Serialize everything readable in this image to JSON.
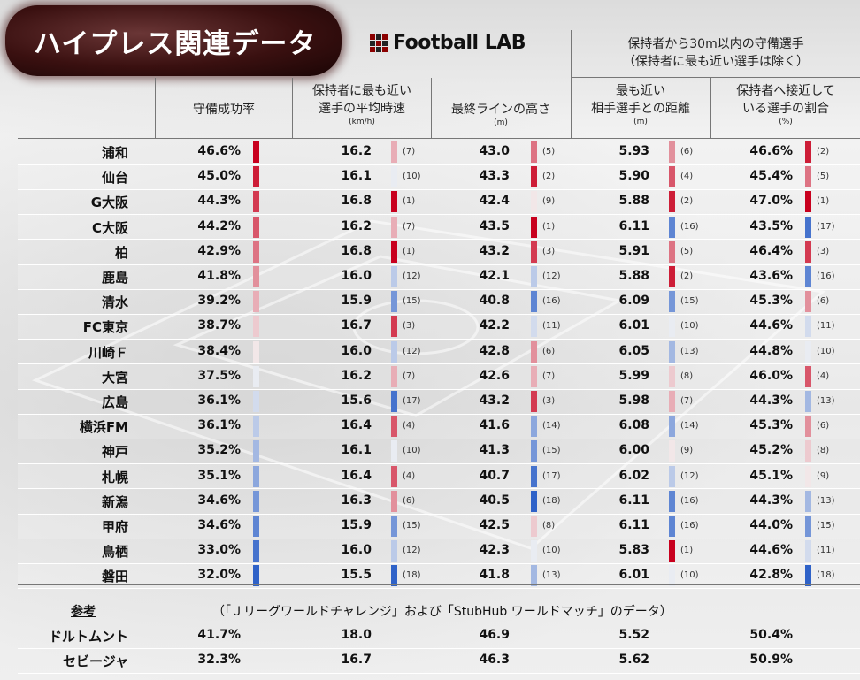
{
  "title": "ハイプレス関連データ",
  "logo": "Football LAB",
  "group_header": {
    "line1": "保持者から30m以内の守備選手",
    "line2": "（保持者に最も近い選手は除く）"
  },
  "columns": [
    {
      "label_lines": [
        "守備成功率"
      ],
      "unit": ""
    },
    {
      "label_lines": [
        "保持者に最も近い",
        "選手の平均時速"
      ],
      "unit": "(km/h)"
    },
    {
      "label_lines": [
        "最終ラインの高さ"
      ],
      "unit": "(m)"
    },
    {
      "label_lines": [
        "最も近い",
        "相手選手との距離"
      ],
      "unit": "(m)"
    },
    {
      "label_lines": [
        "保持者へ接近して",
        "いる選手の割合"
      ],
      "unit": "(%)"
    }
  ],
  "rows": [
    {
      "team": "浦和",
      "values": [
        "46.6%",
        "16.2",
        "43.0",
        "5.93",
        "46.6%"
      ],
      "ranks": [
        null,
        "(7)",
        "(5)",
        "(6)",
        "(2)"
      ]
    },
    {
      "team": "仙台",
      "values": [
        "45.0%",
        "16.1",
        "43.3",
        "5.90",
        "45.4%"
      ],
      "ranks": [
        null,
        "(10)",
        "(2)",
        "(4)",
        "(5)"
      ]
    },
    {
      "team": "G大阪",
      "values": [
        "44.3%",
        "16.8",
        "42.4",
        "5.88",
        "47.0%"
      ],
      "ranks": [
        null,
        "(1)",
        "(9)",
        "(2)",
        "(1)"
      ]
    },
    {
      "team": "C大阪",
      "values": [
        "44.2%",
        "16.2",
        "43.5",
        "6.11",
        "43.5%"
      ],
      "ranks": [
        null,
        "(7)",
        "(1)",
        "(16)",
        "(17)"
      ]
    },
    {
      "team": "柏",
      "values": [
        "42.9%",
        "16.8",
        "43.2",
        "5.91",
        "46.4%"
      ],
      "ranks": [
        null,
        "(1)",
        "(3)",
        "(5)",
        "(3)"
      ]
    },
    {
      "team": "鹿島",
      "values": [
        "41.8%",
        "16.0",
        "42.1",
        "5.88",
        "43.6%"
      ],
      "ranks": [
        null,
        "(12)",
        "(12)",
        "(2)",
        "(16)"
      ]
    },
    {
      "team": "清水",
      "values": [
        "39.2%",
        "15.9",
        "40.8",
        "6.09",
        "45.3%"
      ],
      "ranks": [
        null,
        "(15)",
        "(16)",
        "(15)",
        "(6)"
      ]
    },
    {
      "team": "FC東京",
      "values": [
        "38.7%",
        "16.7",
        "42.2",
        "6.01",
        "44.6%"
      ],
      "ranks": [
        null,
        "(3)",
        "(11)",
        "(10)",
        "(11)"
      ]
    },
    {
      "team": "川崎Ｆ",
      "values": [
        "38.4%",
        "16.0",
        "42.8",
        "6.05",
        "44.8%"
      ],
      "ranks": [
        null,
        "(12)",
        "(6)",
        "(13)",
        "(10)"
      ]
    },
    {
      "team": "大宮",
      "values": [
        "37.5%",
        "16.2",
        "42.6",
        "5.99",
        "46.0%"
      ],
      "ranks": [
        null,
        "(7)",
        "(7)",
        "(8)",
        "(4)"
      ]
    },
    {
      "team": "広島",
      "values": [
        "36.1%",
        "15.6",
        "43.2",
        "5.98",
        "44.3%"
      ],
      "ranks": [
        null,
        "(17)",
        "(3)",
        "(7)",
        "(13)"
      ]
    },
    {
      "team": "横浜FM",
      "values": [
        "36.1%",
        "16.4",
        "41.6",
        "6.08",
        "45.3%"
      ],
      "ranks": [
        null,
        "(4)",
        "(14)",
        "(14)",
        "(6)"
      ]
    },
    {
      "team": "神戸",
      "values": [
        "35.2%",
        "16.1",
        "41.3",
        "6.00",
        "45.2%"
      ],
      "ranks": [
        null,
        "(10)",
        "(15)",
        "(9)",
        "(8)"
      ]
    },
    {
      "team": "札幌",
      "values": [
        "35.1%",
        "16.4",
        "40.7",
        "6.02",
        "45.1%"
      ],
      "ranks": [
        null,
        "(4)",
        "(17)",
        "(12)",
        "(9)"
      ]
    },
    {
      "team": "新潟",
      "values": [
        "34.6%",
        "16.3",
        "40.5",
        "6.11",
        "44.3%"
      ],
      "ranks": [
        null,
        "(6)",
        "(18)",
        "(16)",
        "(13)"
      ]
    },
    {
      "team": "甲府",
      "values": [
        "34.6%",
        "15.9",
        "42.5",
        "6.11",
        "44.0%"
      ],
      "ranks": [
        null,
        "(15)",
        "(8)",
        "(16)",
        "(15)"
      ]
    },
    {
      "team": "鳥栖",
      "values": [
        "33.0%",
        "16.0",
        "42.3",
        "5.83",
        "44.6%"
      ],
      "ranks": [
        null,
        "(12)",
        "(10)",
        "(1)",
        "(11)"
      ]
    },
    {
      "team": "磐田",
      "values": [
        "32.0%",
        "15.5",
        "41.8",
        "6.01",
        "42.8%"
      ],
      "ranks": [
        null,
        "(18)",
        "(13)",
        "(10)",
        "(18)"
      ]
    }
  ],
  "reference": {
    "label": "参考",
    "note": "（「Ｊリーグワールドチャレンジ」および「StubHub ワールドマッチ」のデータ）",
    "rows": [
      {
        "team": "ドルトムント",
        "values": [
          "41.7%",
          "18.0",
          "46.9",
          "5.52",
          "50.4%"
        ]
      },
      {
        "team": "セビージャ",
        "values": [
          "32.3%",
          "16.7",
          "46.3",
          "5.62",
          "50.9%"
        ]
      }
    ]
  },
  "colors": {
    "top": "#c8001e",
    "bottom": "#2f62c8",
    "neutral": "#f5f5f5",
    "title_bg": "#3a1010"
  }
}
